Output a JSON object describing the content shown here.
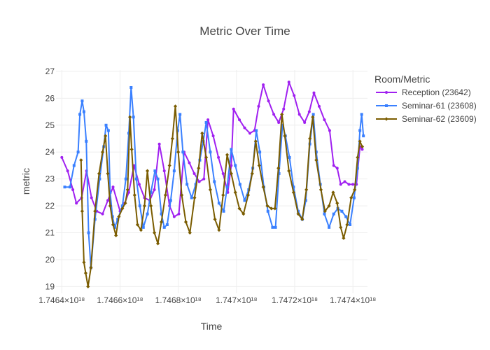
{
  "chart_data": {
    "type": "line",
    "title": "Metric Over Time",
    "xlabel": "Time",
    "ylabel": "metric",
    "xlim": [
      1.74638e+18,
      1.74745e+18
    ],
    "ylim": [
      18.75,
      27.05
    ],
    "y_ticks": [
      19,
      20,
      21,
      22,
      23,
      24,
      25,
      26,
      27
    ],
    "x_ticks": [
      1.7464e+18,
      1.7466e+18,
      1.7468e+18,
      1.747e+18,
      1.7472e+18,
      1.7474e+18
    ],
    "x_tick_labels": [
      "1.7464×10¹⁸",
      "1.7466×10¹⁸",
      "1.7468×10¹⁸",
      "1.747×10¹⁸",
      "1.7472×10¹⁸",
      "1.7474×10¹⁸"
    ],
    "grid": true,
    "legend": {
      "title": "Room/Metric",
      "placement": "top-right"
    },
    "series": [
      {
        "name": "Reception (23642)",
        "color": "#a020f0",
        "marker": "circle",
        "points": [
          [
            1.7464e+18,
            23.8
          ],
          [
            1.74642e+18,
            23.3
          ],
          [
            1.746438e+18,
            22.6
          ],
          [
            1.74645e+18,
            22.1
          ],
          [
            1.746468e+18,
            22.3
          ],
          [
            1.746485e+18,
            23.3
          ],
          [
            1.746502e+18,
            22.3
          ],
          [
            1.74652e+18,
            21.8
          ],
          [
            1.74654e+18,
            21.7
          ],
          [
            1.746558e+18,
            22.2
          ],
          [
            1.746576e+18,
            22.7
          ],
          [
            1.7466e+18,
            21.8
          ],
          [
            1.746616e+18,
            22.1
          ],
          [
            1.74663e+18,
            22.5
          ],
          [
            1.746648e+18,
            23.5
          ],
          [
            1.746666e+18,
            22.8
          ],
          [
            1.746684e+18,
            22.3
          ],
          [
            1.746702e+18,
            22.2
          ],
          [
            1.746718e+18,
            22.6
          ],
          [
            1.746735e+18,
            24.3
          ],
          [
            1.746752e+18,
            23.3
          ],
          [
            1.74677e+18,
            22.0
          ],
          [
            1.746786e+18,
            21.6
          ],
          [
            1.746802e+18,
            21.7
          ],
          [
            1.74682e+18,
            24.0
          ],
          [
            1.746838e+18,
            23.6
          ],
          [
            1.746855e+18,
            23.2
          ],
          [
            1.746872e+18,
            22.9
          ],
          [
            1.746888e+18,
            23.0
          ],
          [
            1.746902e+18,
            25.2
          ],
          [
            1.74692e+18,
            24.6
          ],
          [
            1.746938e+18,
            23.8
          ],
          [
            1.746954e+18,
            23.2
          ],
          [
            1.74697e+18,
            22.5
          ],
          [
            1.746982e+18,
            23.5
          ],
          [
            1.74699e+18,
            25.6
          ],
          [
            1.74701e+18,
            25.2
          ],
          [
            1.747028e+18,
            24.9
          ],
          [
            1.747046e+18,
            24.7
          ],
          [
            1.747062e+18,
            24.8
          ],
          [
            1.747076e+18,
            25.7
          ],
          [
            1.747092e+18,
            26.5
          ],
          [
            1.74711e+18,
            25.9
          ],
          [
            1.747128e+18,
            25.4
          ],
          [
            1.747145e+18,
            25.1
          ],
          [
            1.747162e+18,
            25.6
          ],
          [
            1.74718e+18,
            26.6
          ],
          [
            1.747198e+18,
            26.1
          ],
          [
            1.747216e+18,
            25.4
          ],
          [
            1.747234e+18,
            25.1
          ],
          [
            1.74725e+18,
            25.5
          ],
          [
            1.747266e+18,
            26.2
          ],
          [
            1.747284e+18,
            25.7
          ],
          [
            1.747302e+18,
            25.2
          ],
          [
            1.74732e+18,
            24.8
          ],
          [
            1.747334e+18,
            23.5
          ],
          [
            1.747346e+18,
            23.4
          ],
          [
            1.747358e+18,
            22.8
          ],
          [
            1.747372e+18,
            22.9
          ],
          [
            1.747386e+18,
            22.8
          ],
          [
            1.7474e+18,
            22.8
          ],
          [
            1.747412e+18,
            22.8
          ],
          [
            1.747424e+18,
            24.2
          ],
          [
            1.747432e+18,
            24.1
          ]
        ]
      },
      {
        "name": "Seminar-61 (23608)",
        "color": "#3a80ff",
        "marker": "square",
        "points": [
          [
            1.74641e+18,
            22.7
          ],
          [
            1.746428e+18,
            22.7
          ],
          [
            1.746442e+18,
            23.5
          ],
          [
            1.746456e+18,
            24.0
          ],
          [
            1.746462e+18,
            25.4
          ],
          [
            1.74647e+18,
            25.9
          ],
          [
            1.746476e+18,
            25.5
          ],
          [
            1.746484e+18,
            24.4
          ],
          [
            1.746492e+18,
            21.0
          ],
          [
            1.7465e+18,
            19.7
          ],
          [
            1.746514e+18,
            21.5
          ],
          [
            1.74653e+18,
            23.0
          ],
          [
            1.746544e+18,
            24.2
          ],
          [
            1.746552e+18,
            25.0
          ],
          [
            1.74656e+18,
            24.8
          ],
          [
            1.746566e+18,
            22.5
          ],
          [
            1.746574e+18,
            21.6
          ],
          [
            1.746582e+18,
            21.2
          ],
          [
            1.746592e+18,
            21.5
          ],
          [
            1.746608e+18,
            22.0
          ],
          [
            1.74662e+18,
            23.0
          ],
          [
            1.74663e+18,
            24.7
          ],
          [
            1.746638e+18,
            26.4
          ],
          [
            1.746646e+18,
            25.3
          ],
          [
            1.746656e+18,
            23.0
          ],
          [
            1.746668e+18,
            22.0
          ],
          [
            1.74668e+18,
            21.2
          ],
          [
            1.746694e+18,
            21.7
          ],
          [
            1.746706e+18,
            22.5
          ],
          [
            1.74672e+18,
            23.3
          ],
          [
            1.74673e+18,
            23.0
          ],
          [
            1.746742e+18,
            21.7
          ],
          [
            1.746752e+18,
            21.2
          ],
          [
            1.746762e+18,
            21.3
          ],
          [
            1.746774e+18,
            22.2
          ],
          [
            1.746786e+18,
            23.3
          ],
          [
            1.746798e+18,
            24.8
          ],
          [
            1.746806e+18,
            25.4
          ],
          [
            1.746816e+18,
            24.0
          ],
          [
            1.74683e+18,
            22.8
          ],
          [
            1.746846e+18,
            22.3
          ],
          [
            1.74686e+18,
            22.8
          ],
          [
            1.746874e+18,
            23.7
          ],
          [
            1.746886e+18,
            24.4
          ],
          [
            1.746896e+18,
            25.1
          ],
          [
            1.74691e+18,
            24.0
          ],
          [
            1.746924e+18,
            22.9
          ],
          [
            1.74694e+18,
            22.1
          ],
          [
            1.746956e+18,
            21.8
          ],
          [
            1.746968e+18,
            22.7
          ],
          [
            1.746982e+18,
            24.1
          ],
          [
            1.746996e+18,
            23.5
          ],
          [
            1.747012e+18,
            22.8
          ],
          [
            1.747028e+18,
            22.2
          ],
          [
            1.747042e+18,
            22.6
          ],
          [
            1.747056e+18,
            23.4
          ],
          [
            1.747068e+18,
            24.8
          ],
          [
            1.74708e+18,
            24.0
          ],
          [
            1.747094e+18,
            22.7
          ],
          [
            1.747108e+18,
            21.8
          ],
          [
            1.747124e+18,
            21.2
          ],
          [
            1.747134e+18,
            21.2
          ],
          [
            1.747146e+18,
            23.2
          ],
          [
            1.747158e+18,
            25.0
          ],
          [
            1.747168e+18,
            24.6
          ],
          [
            1.747182e+18,
            23.8
          ],
          [
            1.747196e+18,
            22.7
          ],
          [
            1.747212e+18,
            21.8
          ],
          [
            1.747226e+18,
            21.5
          ],
          [
            1.747238e+18,
            22.2
          ],
          [
            1.747252e+18,
            24.3
          ],
          [
            1.747264e+18,
            25.4
          ],
          [
            1.747274e+18,
            24.0
          ],
          [
            1.747288e+18,
            22.8
          ],
          [
            1.747302e+18,
            21.7
          ],
          [
            1.747318e+18,
            21.2
          ],
          [
            1.747334e+18,
            21.7
          ],
          [
            1.747348e+18,
            21.9
          ],
          [
            1.747362e+18,
            21.8
          ],
          [
            1.747376e+18,
            21.6
          ],
          [
            1.74739e+18,
            21.3
          ],
          [
            1.747404e+18,
            22.3
          ],
          [
            1.747416e+18,
            23.4
          ],
          [
            1.747424e+18,
            24.8
          ],
          [
            1.74743e+18,
            25.4
          ],
          [
            1.747436e+18,
            24.6
          ]
        ]
      },
      {
        "name": "Seminar-62 (23609)",
        "color": "#7a5c00",
        "marker": "diamond",
        "points": [
          [
            1.746466e+18,
            23.7
          ],
          [
            1.74647e+18,
            21.8
          ],
          [
            1.746476e+18,
            19.9
          ],
          [
            1.746482e+18,
            19.5
          ],
          [
            1.74649e+18,
            19.0
          ],
          [
            1.7465e+18,
            19.7
          ],
          [
            1.746514e+18,
            21.8
          ],
          [
            1.746528e+18,
            23.2
          ],
          [
            1.74654e+18,
            24.0
          ],
          [
            1.74655e+18,
            24.6
          ],
          [
            1.746558e+18,
            23.2
          ],
          [
            1.746566e+18,
            22.0
          ],
          [
            1.746576e+18,
            21.3
          ],
          [
            1.746586e+18,
            20.9
          ],
          [
            1.746596e+18,
            21.6
          ],
          [
            1.746608e+18,
            21.9
          ],
          [
            1.746618e+18,
            22.1
          ],
          [
            1.746626e+18,
            22.6
          ],
          [
            1.746634e+18,
            25.3
          ],
          [
            1.74664e+18,
            24.1
          ],
          [
            1.74665e+18,
            22.4
          ],
          [
            1.74666e+18,
            21.3
          ],
          [
            1.746672e+18,
            21.1
          ],
          [
            1.746684e+18,
            22.0
          ],
          [
            1.746694e+18,
            23.3
          ],
          [
            1.746706e+18,
            22.0
          ],
          [
            1.746718e+18,
            21.0
          ],
          [
            1.74673e+18,
            20.6
          ],
          [
            1.746742e+18,
            21.4
          ],
          [
            1.746756e+18,
            22.4
          ],
          [
            1.74677e+18,
            23.5
          ],
          [
            1.74678e+18,
            24.5
          ],
          [
            1.74679e+18,
            25.7
          ],
          [
            1.7468e+18,
            24.0
          ],
          [
            1.746812e+18,
            22.4
          ],
          [
            1.746826e+18,
            21.4
          ],
          [
            1.74684e+18,
            21.0
          ],
          [
            1.746856e+18,
            22.3
          ],
          [
            1.74687e+18,
            23.4
          ],
          [
            1.746882e+18,
            24.7
          ],
          [
            1.746896e+18,
            23.8
          ],
          [
            1.74691e+18,
            22.6
          ],
          [
            1.746926e+18,
            21.5
          ],
          [
            1.74694e+18,
            21.1
          ],
          [
            1.746954e+18,
            22.4
          ],
          [
            1.746968e+18,
            23.9
          ],
          [
            1.746982e+18,
            23.2
          ],
          [
            1.746996e+18,
            22.5
          ],
          [
            1.74701e+18,
            21.9
          ],
          [
            1.747024e+18,
            21.7
          ],
          [
            1.74704e+18,
            22.4
          ],
          [
            1.747054e+18,
            23.2
          ],
          [
            1.747066e+18,
            24.4
          ],
          [
            1.747078e+18,
            23.5
          ],
          [
            1.747092e+18,
            22.7
          ],
          [
            1.747106e+18,
            22.0
          ],
          [
            1.74712e+18,
            21.9
          ],
          [
            1.747132e+18,
            21.9
          ],
          [
            1.747144e+18,
            23.4
          ],
          [
            1.747156e+18,
            25.4
          ],
          [
            1.747166e+18,
            24.6
          ],
          [
            1.74718e+18,
            23.3
          ],
          [
            1.747196e+18,
            22.5
          ],
          [
            1.747212e+18,
            21.7
          ],
          [
            1.747226e+18,
            21.5
          ],
          [
            1.74724e+18,
            22.6
          ],
          [
            1.747252e+18,
            24.5
          ],
          [
            1.747262e+18,
            25.3
          ],
          [
            1.747274e+18,
            23.7
          ],
          [
            1.74729e+18,
            22.6
          ],
          [
            1.747304e+18,
            21.8
          ],
          [
            1.747318e+18,
            22.0
          ],
          [
            1.747332e+18,
            22.5
          ],
          [
            1.747346e+18,
            22.1
          ],
          [
            1.747358e+18,
            21.2
          ],
          [
            1.747368e+18,
            20.8
          ],
          [
            1.74738e+18,
            21.3
          ],
          [
            1.747394e+18,
            22.3
          ],
          [
            1.747406e+18,
            22.6
          ],
          [
            1.747416e+18,
            23.8
          ],
          [
            1.747424e+18,
            24.4
          ],
          [
            1.747432e+18,
            24.2
          ]
        ]
      }
    ]
  }
}
